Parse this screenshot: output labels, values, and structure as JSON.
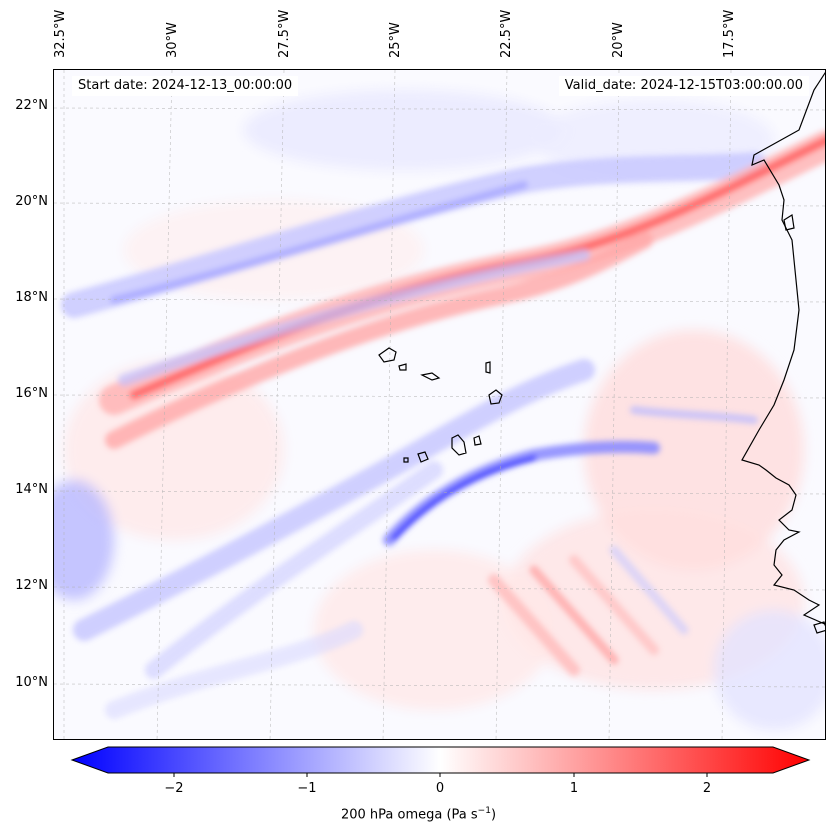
{
  "header": {
    "start_date": "Start date: 2024-12-13_00:00:00",
    "valid_date": "Valid_date: 2024-12-15T03:00:00.00"
  },
  "axes": {
    "lon_labels": [
      "32.5°W",
      "30°W",
      "27.5°W",
      "25°W",
      "22.5°W",
      "20°W",
      "17.5°W"
    ],
    "lat_labels": [
      "22°N",
      "20°N",
      "18°N",
      "16°N",
      "14°N",
      "12°N",
      "10°N"
    ]
  },
  "colorbar": {
    "title_main": "200 hPa omega (Pa s",
    "title_sup": "−1",
    "title_end": ")",
    "ticks": [
      "−2",
      "−1",
      "0",
      "1",
      "2"
    ],
    "colors": {
      "low": "#0000ff",
      "mid": "#ffffff",
      "high": "#ff0000"
    }
  },
  "chart_data": {
    "type": "heatmap",
    "variable": "200 hPa omega",
    "units": "Pa s^-1",
    "lon_range": [
      -33,
      -15.5
    ],
    "lat_range": [
      8.8,
      22.8
    ],
    "color_range": [
      -2.5,
      2.5
    ]
  }
}
